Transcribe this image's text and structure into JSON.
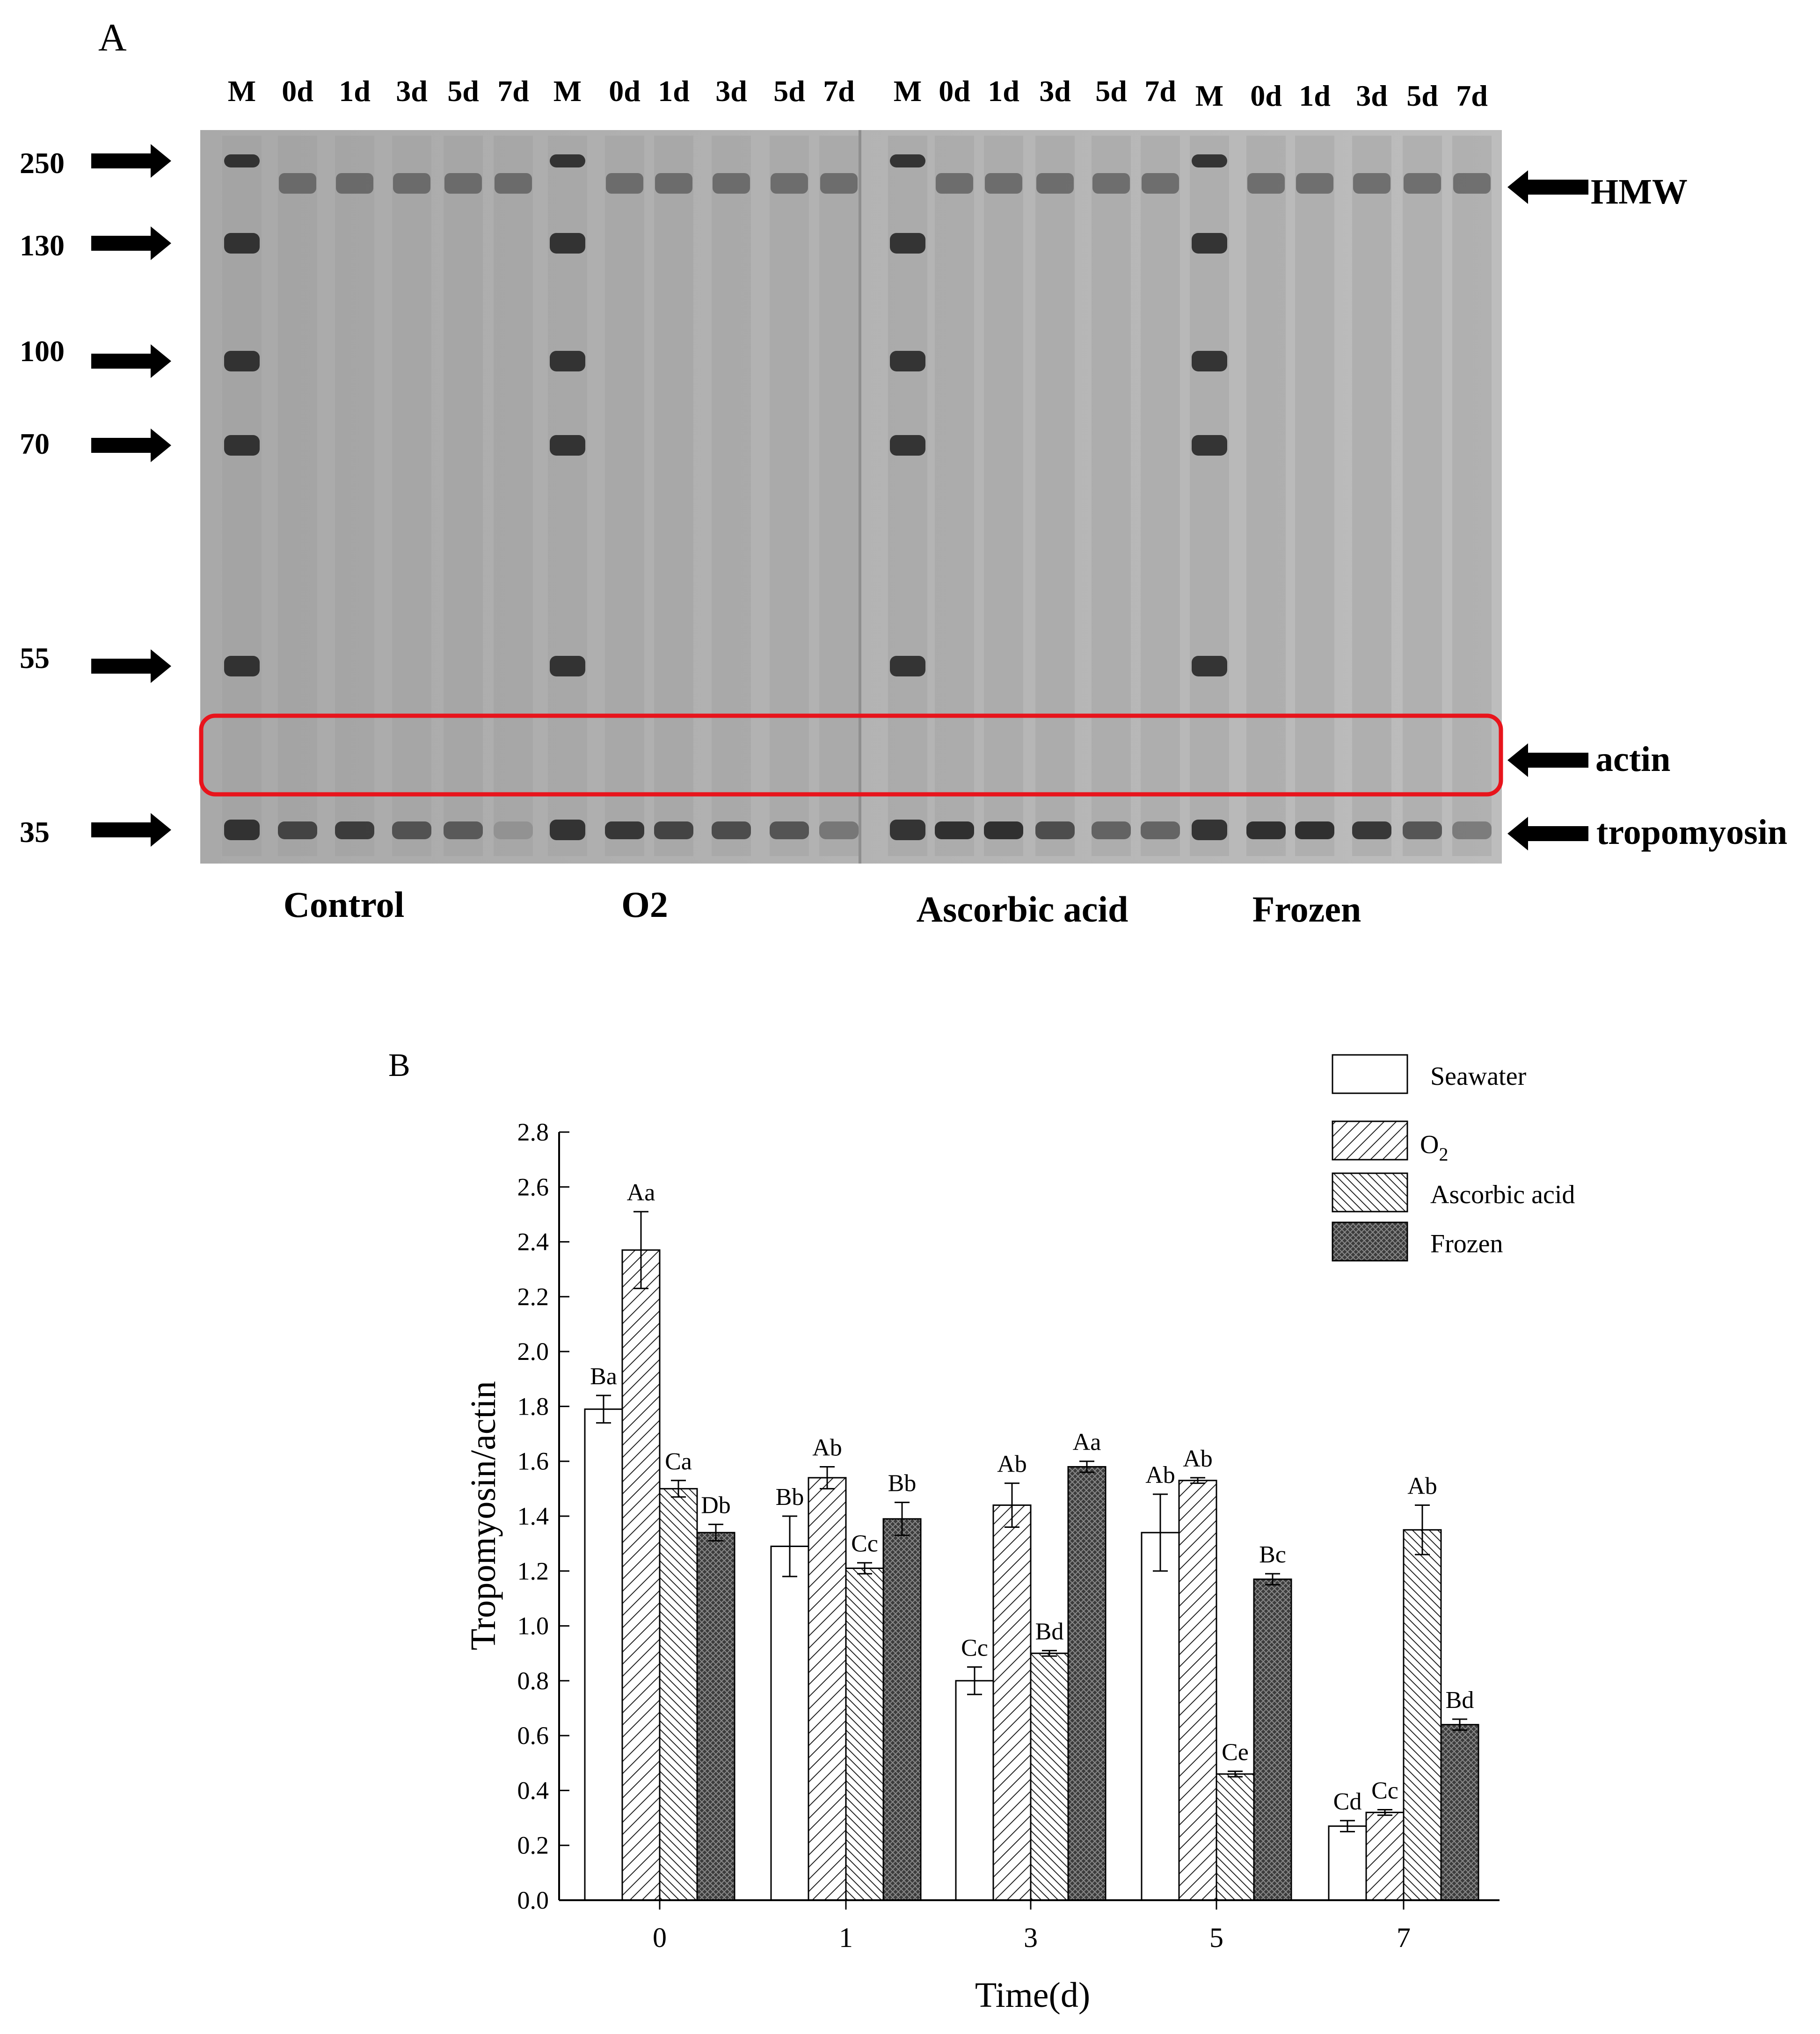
{
  "panelA": {
    "label": "A",
    "lane_labels": [
      "M",
      "0d",
      "1d",
      "3d",
      "5d",
      "7d",
      "M",
      "0d",
      "1d",
      "3d",
      "5d",
      "7d",
      "M",
      "0d",
      "1d",
      "3d",
      "5d",
      "7d",
      "M",
      "0d",
      "1d",
      "3d",
      "5d",
      "7d"
    ],
    "markers": [
      "250",
      "130",
      "100",
      "70",
      "55",
      "35"
    ],
    "bands": [
      "HMW",
      "actin",
      "tropomyosin"
    ],
    "groups": [
      "Control",
      "O2",
      "Ascorbic acid",
      "Frozen"
    ],
    "highlight_color": "#e8141c"
  },
  "chart_data": {
    "type": "bar",
    "panel_label": "B",
    "categories": [
      "0",
      "1",
      "3",
      "5",
      "7"
    ],
    "series": [
      {
        "name": "Seawater",
        "values": [
          1.79,
          1.29,
          0.8,
          1.34,
          0.27
        ],
        "errors": [
          0.05,
          0.11,
          0.05,
          0.14,
          0.02
        ],
        "letters": [
          "Ba",
          "Bb",
          "Cc",
          "Ab",
          "Cd"
        ]
      },
      {
        "name": "O2",
        "values": [
          2.37,
          1.54,
          1.44,
          1.53,
          0.32
        ],
        "errors": [
          0.14,
          0.04,
          0.08,
          0.01,
          0.01
        ],
        "letters": [
          "Aa",
          "Ab",
          "Ab",
          "Ab",
          "Cc"
        ]
      },
      {
        "name": "Ascorbic acid",
        "values": [
          1.5,
          1.21,
          0.9,
          0.46,
          1.35
        ],
        "errors": [
          0.03,
          0.02,
          0.01,
          0.01,
          0.09
        ],
        "letters": [
          "Ca",
          "Cc",
          "Bd",
          "Ce",
          "Ab"
        ]
      },
      {
        "name": "Frozen",
        "values": [
          1.34,
          1.39,
          1.58,
          1.17,
          0.64
        ],
        "errors": [
          0.03,
          0.06,
          0.02,
          0.02,
          0.02
        ],
        "letters": [
          "Db",
          "Bb",
          "Aa",
          "Bc",
          "Bd"
        ]
      }
    ],
    "legend_labels": [
      "Seawater",
      "O",
      "Ascorbic acid",
      "Frozen"
    ],
    "legend_subscript": "2",
    "xlabel": "Time(d)",
    "ylabel": "Tropomyosin/actin",
    "ylim": [
      0,
      2.8
    ],
    "yticks": [
      "0.0",
      "0.2",
      "0.4",
      "0.6",
      "0.8",
      "1.0",
      "1.2",
      "1.4",
      "1.6",
      "1.8",
      "2.0",
      "2.2",
      "2.4",
      "2.6",
      "2.8"
    ],
    "legend_position": "top-right",
    "grid": false
  }
}
